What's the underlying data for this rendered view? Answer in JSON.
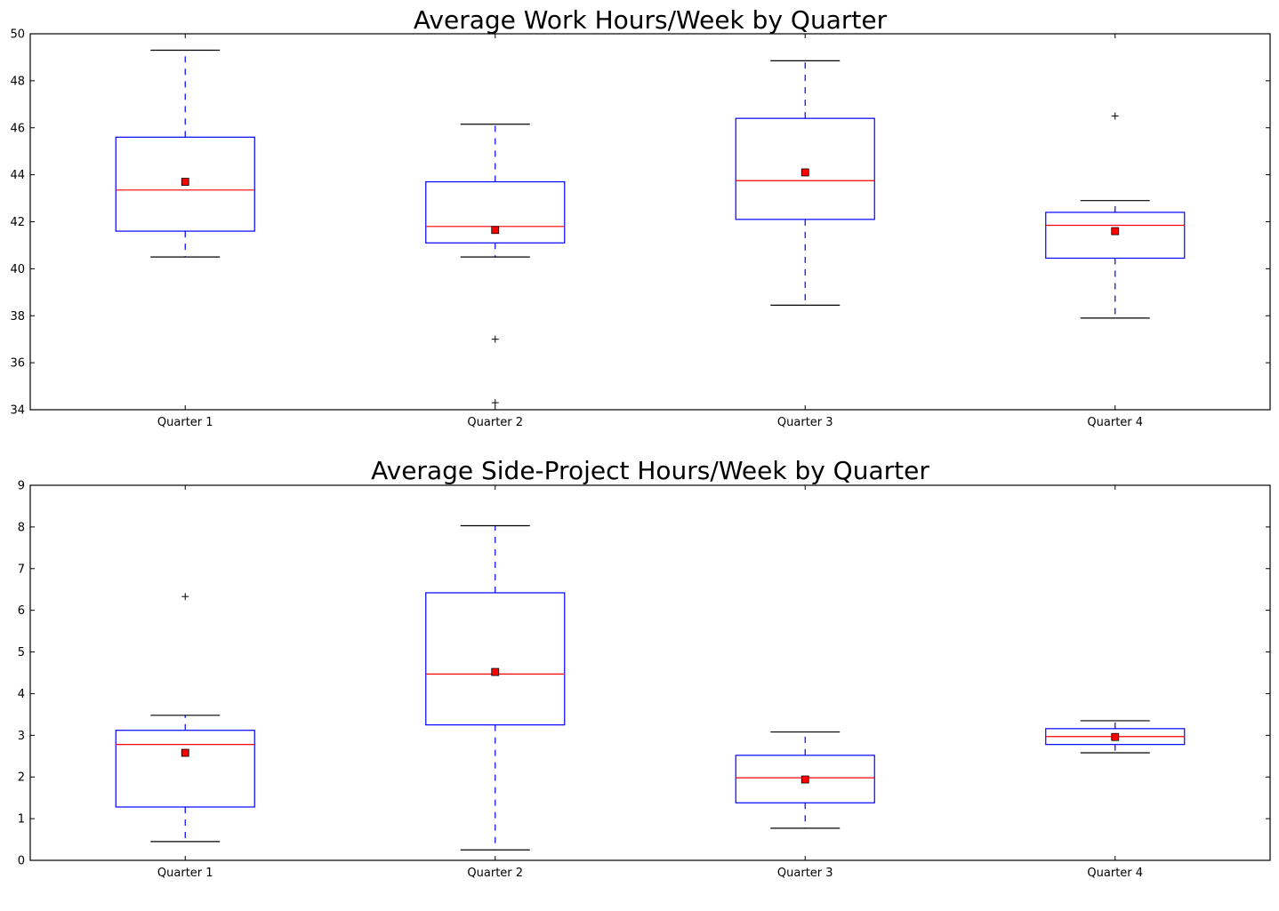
{
  "colors": {
    "box": "#0000ff",
    "median": "#ff0000",
    "mean_fill": "#ff0000",
    "whisker": "#0000ff",
    "cap": "#000000",
    "flier": "#000000",
    "axes": "#000000"
  },
  "chart_data": [
    {
      "type": "box",
      "title": "Average Work Hours/Week by Quarter",
      "xlabel": "",
      "ylabel": "",
      "ylim": [
        34,
        50
      ],
      "yticks": [
        34,
        36,
        38,
        40,
        42,
        44,
        46,
        48,
        50
      ],
      "grid": false,
      "categories": [
        "Quarter 1",
        "Quarter 2",
        "Quarter 3",
        "Quarter 4"
      ],
      "boxes": [
        {
          "whisker_low": 40.5,
          "q1": 41.6,
          "median": 43.35,
          "q3": 45.6,
          "whisker_high": 49.3,
          "mean": 43.7,
          "fliers": []
        },
        {
          "whisker_low": 40.5,
          "q1": 41.1,
          "median": 41.8,
          "q3": 43.7,
          "whisker_high": 46.15,
          "mean": 41.65,
          "fliers": [
            37.0,
            34.3
          ]
        },
        {
          "whisker_low": 38.45,
          "q1": 42.1,
          "median": 43.75,
          "q3": 46.4,
          "whisker_high": 48.85,
          "mean": 44.1,
          "fliers": []
        },
        {
          "whisker_low": 37.9,
          "q1": 40.45,
          "median": 41.85,
          "q3": 42.4,
          "whisker_high": 42.9,
          "mean": 41.6,
          "fliers": [
            46.5
          ]
        }
      ]
    },
    {
      "type": "box",
      "title": "Average Side-Project Hours/Week by Quarter",
      "xlabel": "",
      "ylabel": "",
      "ylim": [
        0,
        9
      ],
      "yticks": [
        0,
        1,
        2,
        3,
        4,
        5,
        6,
        7,
        8,
        9
      ],
      "grid": false,
      "categories": [
        "Quarter 1",
        "Quarter 2",
        "Quarter 3",
        "Quarter 4"
      ],
      "boxes": [
        {
          "whisker_low": 0.45,
          "q1": 1.28,
          "median": 2.78,
          "q3": 3.12,
          "whisker_high": 3.48,
          "mean": 2.58,
          "fliers": [
            6.33
          ]
        },
        {
          "whisker_low": 0.25,
          "q1": 3.25,
          "median": 4.47,
          "q3": 6.42,
          "whisker_high": 8.03,
          "mean": 4.52,
          "fliers": []
        },
        {
          "whisker_low": 0.77,
          "q1": 1.38,
          "median": 1.98,
          "q3": 2.52,
          "whisker_high": 3.08,
          "mean": 1.94,
          "fliers": []
        },
        {
          "whisker_low": 2.58,
          "q1": 2.78,
          "median": 2.97,
          "q3": 3.16,
          "whisker_high": 3.35,
          "mean": 2.96,
          "fliers": []
        }
      ]
    }
  ]
}
